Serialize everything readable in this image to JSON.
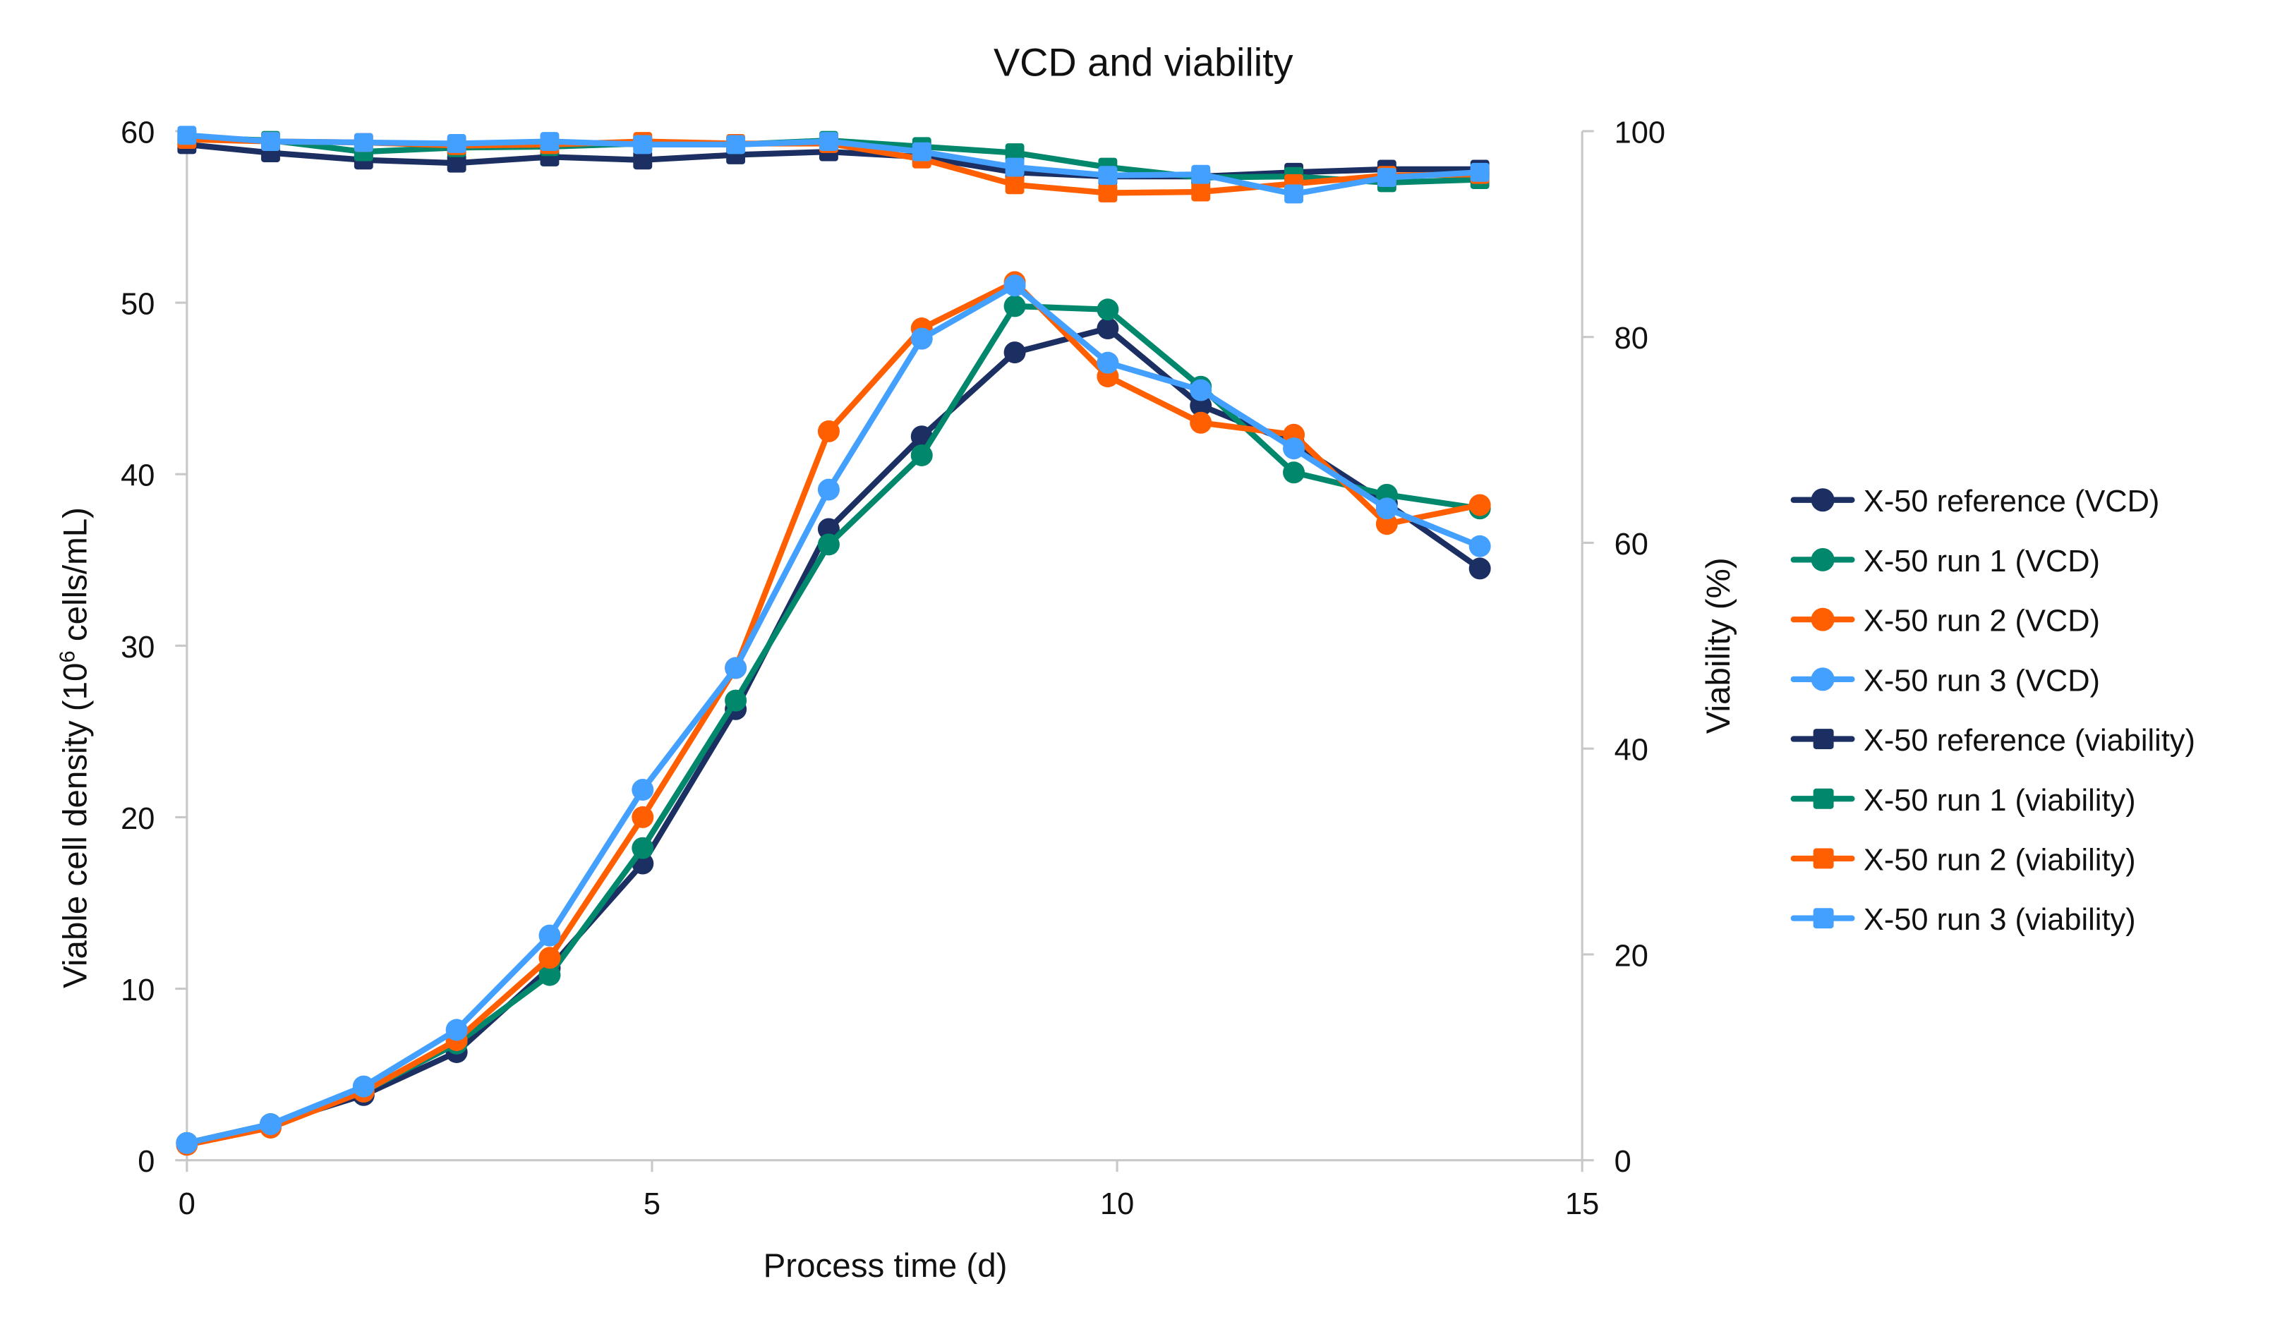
{
  "chart_data": {
    "type": "line",
    "title": "VCD and viability",
    "xlabel": "Process time (d)",
    "ylabel_left": "Viable cell density (10",
    "ylabel_left_sup": "6",
    "ylabel_left_tail": " cells/mL)",
    "ylabel_right": "Viability (%)",
    "xlim": [
      0,
      15
    ],
    "ylim_left": [
      0,
      60
    ],
    "ylim_right": [
      0,
      100
    ],
    "x_ticks": [
      "0",
      "5",
      "10",
      "15"
    ],
    "y_left_ticks": [
      "0",
      "10",
      "20",
      "30",
      "40",
      "50",
      "60"
    ],
    "y_right_ticks": [
      "0",
      "20",
      "40",
      "60",
      "80",
      "100"
    ],
    "grid": false,
    "legend_position": "right",
    "x": [
      0,
      0.9,
      1.9,
      2.9,
      3.9,
      4.9,
      5.9,
      6.9,
      7.9,
      8.9,
      9.9,
      10.9,
      11.9,
      12.9,
      13.9
    ],
    "series": [
      {
        "name": "X-50 reference (VCD)",
        "axis": "left",
        "marker": "circle",
        "color": "#1c2f63",
        "values": [
          1.0,
          2.1,
          3.8,
          6.3,
          11.2,
          17.3,
          26.3,
          36.8,
          42.2,
          47.1,
          48.5,
          44.0,
          41.8,
          38.3,
          34.5
        ]
      },
      {
        "name": "X-50 run 1 (VCD)",
        "axis": "left",
        "marker": "circle",
        "color": "#00876c",
        "values": [
          1.0,
          2.1,
          4.0,
          6.8,
          10.8,
          18.2,
          26.8,
          35.9,
          41.1,
          49.8,
          49.6,
          45.1,
          40.1,
          38.8,
          38.0
        ]
      },
      {
        "name": "X-50 run 2 (VCD)",
        "axis": "left",
        "marker": "circle",
        "color": "#ff5f00",
        "values": [
          0.9,
          1.9,
          4.0,
          7.0,
          11.8,
          20.0,
          28.7,
          42.5,
          48.5,
          51.2,
          45.7,
          43.0,
          42.3,
          37.1,
          38.2
        ]
      },
      {
        "name": "X-50 run 3 (VCD)",
        "axis": "left",
        "marker": "circle",
        "color": "#44a0ff",
        "values": [
          1.0,
          2.1,
          4.3,
          7.6,
          13.1,
          21.6,
          28.7,
          39.1,
          47.9,
          51.0,
          46.5,
          44.9,
          41.5,
          38.0,
          35.8
        ]
      },
      {
        "name": "X-50 reference (viability)",
        "axis": "right",
        "marker": "square",
        "color": "#1c2f63",
        "values": [
          98.7,
          97.9,
          97.2,
          96.9,
          97.5,
          97.2,
          97.7,
          98.0,
          97.5,
          96.0,
          95.6,
          95.6,
          96.0,
          96.3,
          96.3
        ]
      },
      {
        "name": "X-50 run 1 (viability)",
        "axis": "right",
        "marker": "square",
        "color": "#00876c",
        "values": [
          99.4,
          99.1,
          98.0,
          98.4,
          98.5,
          98.8,
          98.7,
          99.1,
          98.5,
          97.9,
          96.5,
          95.5,
          95.6,
          95.0,
          95.3
        ]
      },
      {
        "name": "X-50 run 2 (viability)",
        "axis": "right",
        "marker": "square",
        "color": "#ff5f00",
        "values": [
          99.2,
          99.0,
          98.9,
          98.6,
          98.7,
          99.0,
          98.8,
          98.8,
          97.3,
          94.8,
          94.0,
          94.1,
          94.9,
          95.7,
          95.8
        ]
      },
      {
        "name": "X-50 run 3 (viability)",
        "axis": "right",
        "marker": "square",
        "color": "#44a0ff",
        "values": [
          99.6,
          99.0,
          98.9,
          98.8,
          99.0,
          98.7,
          98.7,
          99.0,
          98.0,
          96.5,
          95.7,
          95.8,
          93.9,
          95.5,
          96.0
        ]
      }
    ]
  }
}
